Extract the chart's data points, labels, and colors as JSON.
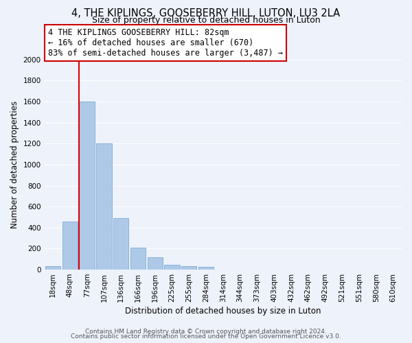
{
  "title": "4, THE KIPLINGS, GOOSEBERRY HILL, LUTON, LU3 2LA",
  "subtitle": "Size of property relative to detached houses in Luton",
  "xlabel": "Distribution of detached houses by size in Luton",
  "ylabel": "Number of detached properties",
  "bar_labels": [
    "18sqm",
    "48sqm",
    "77sqm",
    "107sqm",
    "136sqm",
    "166sqm",
    "196sqm",
    "225sqm",
    "255sqm",
    "284sqm",
    "314sqm",
    "344sqm",
    "373sqm",
    "403sqm",
    "432sqm",
    "462sqm",
    "492sqm",
    "521sqm",
    "551sqm",
    "580sqm",
    "610sqm"
  ],
  "bar_values": [
    30,
    455,
    1600,
    1200,
    490,
    210,
    120,
    45,
    30,
    25,
    0,
    0,
    0,
    0,
    0,
    0,
    0,
    0,
    0,
    0,
    0
  ],
  "bar_color": "#aec9e8",
  "bar_edge_color": "#7eaad4",
  "highlight_line_index": 2,
  "red_line_color": "#dd0000",
  "ylim": [
    0,
    2000
  ],
  "yticks": [
    0,
    200,
    400,
    600,
    800,
    1000,
    1200,
    1400,
    1600,
    1800,
    2000
  ],
  "annotation_line1": "4 THE KIPLINGS GOOSEBERRY HILL: 82sqm",
  "annotation_line2": "← 16% of detached houses are smaller (670)",
  "annotation_line3": "83% of semi-detached houses are larger (3,487) →",
  "annotation_box_color": "#ffffff",
  "annotation_box_edge": "#cc0000",
  "footer_line1": "Contains HM Land Registry data © Crown copyright and database right 2024.",
  "footer_line2": "Contains public sector information licensed under the Open Government Licence v3.0.",
  "background_color": "#eef2fb",
  "plot_bg_color": "#eef2fb",
  "grid_color": "#ffffff",
  "title_fontsize": 10.5,
  "subtitle_fontsize": 9,
  "axis_label_fontsize": 8.5,
  "tick_fontsize": 7.5,
  "annotation_fontsize": 8.5,
  "footer_fontsize": 6.5
}
